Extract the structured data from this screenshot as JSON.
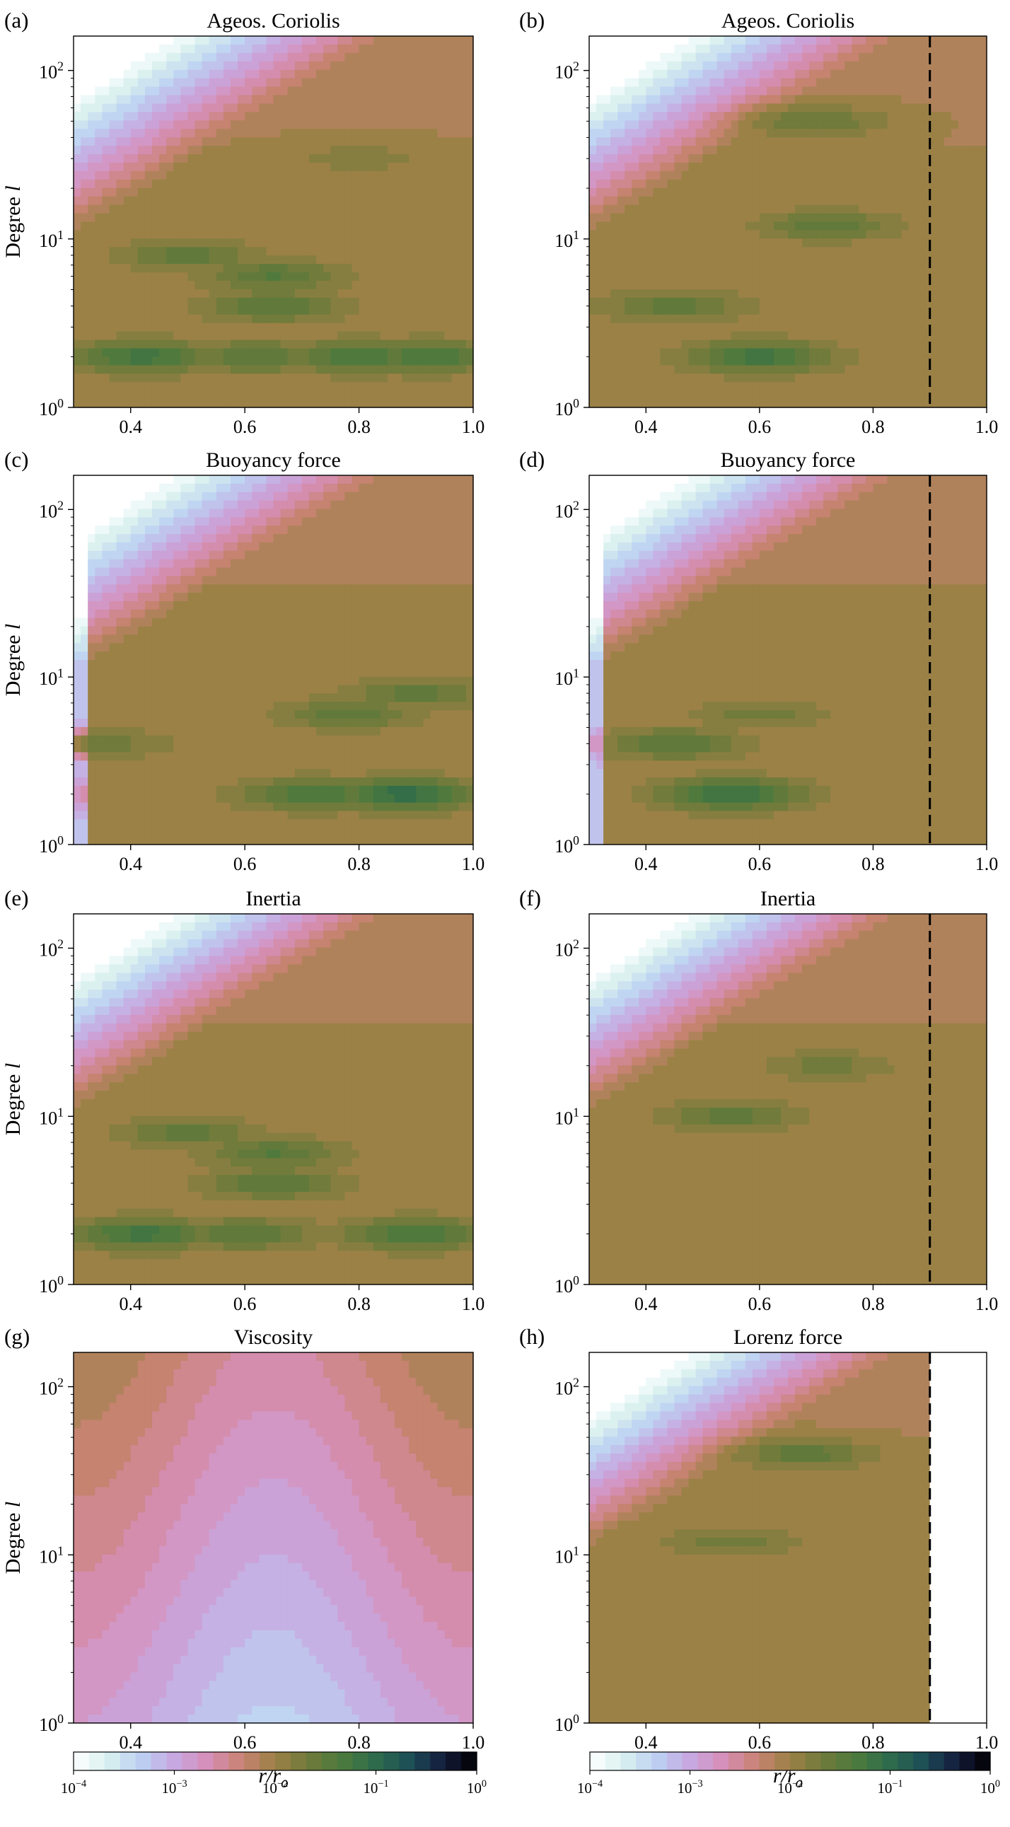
{
  "chart_data": [
    {
      "type": "heatmap",
      "panel": "(a)",
      "title": "Ageos. Coriolis",
      "ylabel": "Degree l",
      "xlabel": "",
      "xlim": [
        0.3,
        1.0
      ],
      "ylim": [
        1,
        160
      ],
      "yscale": "log",
      "xticks": [
        "0.4",
        "0.6",
        "0.8",
        "1.0"
      ],
      "yticks": [
        {
          "b": "10",
          "e": "0"
        },
        {
          "b": "10",
          "e": "1"
        },
        {
          "b": "10",
          "e": "2"
        }
      ],
      "dashed_line_x": null,
      "low_threshold": null,
      "features": [
        {
          "r": 0.42,
          "l": 2,
          "v": 0.06
        },
        {
          "r": 0.62,
          "l": 2,
          "v": 0.035
        },
        {
          "r": 0.8,
          "l": 2,
          "v": 0.05
        },
        {
          "r": 0.92,
          "l": 2,
          "v": 0.05
        },
        {
          "r": 0.65,
          "l": 4,
          "v": 0.035
        },
        {
          "r": 0.65,
          "l": 6,
          "v": 0.035
        },
        {
          "r": 0.5,
          "l": 8,
          "v": 0.03
        },
        {
          "r": 0.8,
          "l": 30,
          "v": 0.015
        }
      ]
    },
    {
      "type": "heatmap",
      "panel": "(b)",
      "title": "Ageos. Coriolis",
      "ylabel": "",
      "xlabel": "",
      "xlim": [
        0.3,
        1.0
      ],
      "ylim": [
        1,
        160
      ],
      "yscale": "log",
      "xticks": [
        "0.4",
        "0.6",
        "0.8",
        "1.0"
      ],
      "yticks": [
        {
          "b": "10",
          "e": "0"
        },
        {
          "b": "10",
          "e": "1"
        },
        {
          "b": "10",
          "e": "2"
        }
      ],
      "dashed_line_x": 0.9,
      "low_threshold": null,
      "features": [
        {
          "r": 0.6,
          "l": 2,
          "v": 0.06
        },
        {
          "r": 0.45,
          "l": 4,
          "v": 0.03
        },
        {
          "r": 0.72,
          "l": 12,
          "v": 0.03
        },
        {
          "r": 0.7,
          "l": 50,
          "v": 0.025
        }
      ]
    },
    {
      "type": "heatmap",
      "panel": "(c)",
      "title": "Buoyancy force",
      "ylabel": "Degree l",
      "xlabel": "",
      "xlim": [
        0.3,
        1.0
      ],
      "ylim": [
        1,
        160
      ],
      "yscale": "log",
      "xticks": [
        "0.4",
        "0.6",
        "0.8",
        "1.0"
      ],
      "yticks": [
        {
          "b": "10",
          "e": "0"
        },
        {
          "b": "10",
          "e": "1"
        },
        {
          "b": "10",
          "e": "2"
        }
      ],
      "dashed_line_x": null,
      "low_threshold": null,
      "features": [
        {
          "r": 0.88,
          "l": 2,
          "v": 0.09
        },
        {
          "r": 0.72,
          "l": 2,
          "v": 0.05
        },
        {
          "r": 0.42,
          "l": 2,
          "v": 0.012
        },
        {
          "r": 0.35,
          "l": 4,
          "v": 0.02
        },
        {
          "r": 0.78,
          "l": 6,
          "v": 0.03
        },
        {
          "r": 0.9,
          "l": 8,
          "v": 0.03
        }
      ]
    },
    {
      "type": "heatmap",
      "panel": "(d)",
      "title": "Buoyancy force",
      "ylabel": "",
      "xlabel": "",
      "xlim": [
        0.3,
        1.0
      ],
      "ylim": [
        1,
        160
      ],
      "yscale": "log",
      "xticks": [
        "0.4",
        "0.6",
        "0.8",
        "1.0"
      ],
      "yticks": [
        {
          "b": "10",
          "e": "0"
        },
        {
          "b": "10",
          "e": "1"
        },
        {
          "b": "10",
          "e": "2"
        }
      ],
      "dashed_line_x": 0.9,
      "low_threshold": null,
      "features": [
        {
          "r": 0.55,
          "l": 2,
          "v": 0.08
        },
        {
          "r": 0.45,
          "l": 4,
          "v": 0.035
        },
        {
          "r": 0.6,
          "l": 6,
          "v": 0.02
        }
      ]
    },
    {
      "type": "heatmap",
      "panel": "(e)",
      "title": "Inertia",
      "ylabel": "Degree l",
      "xlabel": "",
      "xlim": [
        0.3,
        1.0
      ],
      "ylim": [
        1,
        160
      ],
      "yscale": "log",
      "xticks": [
        "0.4",
        "0.6",
        "0.8",
        "1.0"
      ],
      "yticks": [
        {
          "b": "10",
          "e": "0"
        },
        {
          "b": "10",
          "e": "1"
        },
        {
          "b": "10",
          "e": "2"
        }
      ],
      "dashed_line_x": null,
      "low_threshold": null,
      "features": [
        {
          "r": 0.42,
          "l": 2,
          "v": 0.06
        },
        {
          "r": 0.6,
          "l": 2,
          "v": 0.035
        },
        {
          "r": 0.9,
          "l": 2,
          "v": 0.05
        },
        {
          "r": 0.65,
          "l": 4,
          "v": 0.035
        },
        {
          "r": 0.65,
          "l": 6,
          "v": 0.035
        },
        {
          "r": 0.5,
          "l": 8,
          "v": 0.03
        }
      ]
    },
    {
      "type": "heatmap",
      "panel": "(f)",
      "title": "Inertia",
      "ylabel": "",
      "xlabel": "",
      "xlim": [
        0.3,
        1.0
      ],
      "ylim": [
        1,
        160
      ],
      "yscale": "log",
      "xticks": [
        "0.4",
        "0.6",
        "0.8",
        "1.0"
      ],
      "yticks": [
        {
          "b": "10",
          "e": "0"
        },
        {
          "b": "10",
          "e": "1"
        },
        {
          "b": "10",
          "e": "2"
        }
      ],
      "dashed_line_x": 0.9,
      "low_threshold": null,
      "features": [
        {
          "r": 0.55,
          "l": 10,
          "v": 0.03
        },
        {
          "r": 0.72,
          "l": 20,
          "v": 0.02
        }
      ]
    },
    {
      "type": "heatmap",
      "panel": "(g)",
      "title": "Viscosity",
      "ylabel": "Degree l",
      "xlabel": "r/r_o",
      "xlim": [
        0.3,
        1.0
      ],
      "ylim": [
        1,
        160
      ],
      "yscale": "log",
      "xticks": [
        "0.4",
        "0.6",
        "0.8",
        "1.0"
      ],
      "yticks": [
        {
          "b": "10",
          "e": "0"
        },
        {
          "b": "10",
          "e": "1"
        },
        {
          "b": "10",
          "e": "2"
        }
      ],
      "dashed_line_x": null,
      "low_threshold": null,
      "features": [
        {
          "r": 0.45,
          "l": 40,
          "v": 0.002
        },
        {
          "r": 0.62,
          "l": 15,
          "v": 0.0012
        },
        {
          "r": 0.8,
          "l": 1.2,
          "v": 0.0002
        }
      ]
    },
    {
      "type": "heatmap",
      "panel": "(h)",
      "title": "Lorenz force",
      "ylabel": "",
      "xlabel": "r/r_o",
      "xlim": [
        0.3,
        1.0
      ],
      "ylim": [
        1,
        160
      ],
      "yscale": "log",
      "xticks": [
        "0.4",
        "0.6",
        "0.8",
        "1.0"
      ],
      "yticks": [
        {
          "b": "10",
          "e": "0"
        },
        {
          "b": "10",
          "e": "1"
        },
        {
          "b": "10",
          "e": "2"
        }
      ],
      "dashed_line_x": 0.9,
      "low_threshold": 0.905,
      "features": [
        {
          "r": 0.68,
          "l": 40,
          "v": 0.03
        },
        {
          "r": 0.55,
          "l": 12,
          "v": 0.02
        }
      ]
    }
  ],
  "colorbars": [
    {
      "range": [
        0.0001,
        1
      ],
      "scale": "log",
      "ticks": [
        {
          "b": "10",
          "e": "−4"
        },
        {
          "b": "10",
          "e": "−3"
        },
        {
          "b": "10",
          "e": "−2"
        },
        {
          "b": "10",
          "e": "−1"
        },
        {
          "b": "10",
          "e": "0"
        }
      ]
    },
    {
      "range": [
        0.0001,
        1
      ],
      "scale": "log",
      "ticks": [
        {
          "b": "10",
          "e": "−4"
        },
        {
          "b": "10",
          "e": "−3"
        },
        {
          "b": "10",
          "e": "−2"
        },
        {
          "b": "10",
          "e": "−1"
        },
        {
          "b": "10",
          "e": "0"
        }
      ]
    }
  ],
  "colormap": [
    "#ffffff",
    "#d8f0ef",
    "#bcd0f2",
    "#c8a8e0",
    "#d68fb8",
    "#c98373",
    "#9b8146",
    "#6e7a3a",
    "#4b7a3e",
    "#2d6b4c",
    "#1d4f57",
    "#141c3c",
    "#000000"
  ]
}
